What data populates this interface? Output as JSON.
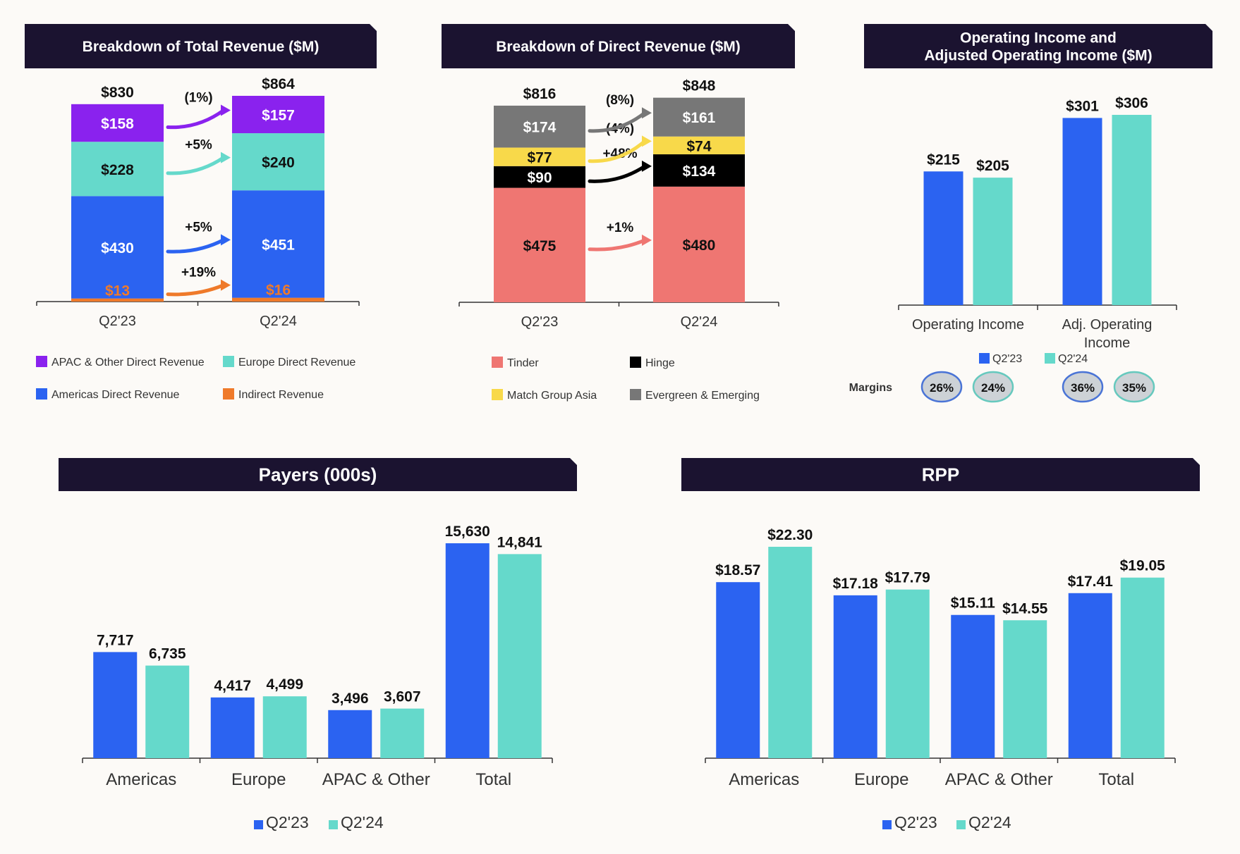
{
  "colors": {
    "header_bg": "#1b1330",
    "page_bg": "#fcfaf7",
    "blue": "#2b63f1",
    "teal": "#65d9cb",
    "purple": "#8a22ee",
    "orange": "#ef7a2a",
    "tinder": "#ef7672",
    "black": "#000000",
    "yellow": "#f8d94a",
    "gray": "#777777",
    "margin_blue_border": "#4a74d6",
    "margin_teal_border": "#66c9be",
    "margin_fill": "#cdd2d6"
  },
  "chart_data": [
    {
      "id": "total_revenue",
      "type": "bar",
      "stacked": true,
      "title": "Breakdown of Total Revenue ($M)",
      "categories": [
        "Q2'23",
        "Q2'24"
      ],
      "totals": [
        "$830",
        "$864"
      ],
      "total_values": [
        830,
        864
      ],
      "series": [
        {
          "name": "Indirect Revenue",
          "color": "#ef7a2a",
          "values": [
            13,
            16
          ],
          "labels": [
            "$13",
            "$16"
          ],
          "change": "+19%"
        },
        {
          "name": "Americas Direct Revenue",
          "color": "#2b63f1",
          "values": [
            430,
            451
          ],
          "labels": [
            "$430",
            "$451"
          ],
          "change": "+5%"
        },
        {
          "name": "Europe Direct Revenue",
          "color": "#65d9cb",
          "values": [
            228,
            240
          ],
          "labels": [
            "$228",
            "$240"
          ],
          "change": "+5%"
        },
        {
          "name": "APAC & Other Direct Revenue",
          "color": "#8a22ee",
          "values": [
            158,
            157
          ],
          "labels": [
            "$158",
            "$157"
          ],
          "change": "(1%)"
        }
      ],
      "legend_order": [
        "APAC & Other Direct Revenue",
        "Europe Direct Revenue",
        "Americas Direct Revenue",
        "Indirect Revenue"
      ],
      "legend_placement": "bottom",
      "grid": false
    },
    {
      "id": "direct_revenue",
      "type": "bar",
      "stacked": true,
      "title": "Breakdown of  Direct Revenue ($M)",
      "categories": [
        "Q2'23",
        "Q2'24"
      ],
      "totals": [
        "$816",
        "$848"
      ],
      "total_values": [
        816,
        848
      ],
      "series": [
        {
          "name": "Tinder",
          "color": "#ef7672",
          "values": [
            475,
            480
          ],
          "labels": [
            "$475",
            "$480"
          ],
          "change": "+1%"
        },
        {
          "name": "Hinge",
          "color": "#000000",
          "values": [
            90,
            134
          ],
          "labels": [
            "$90",
            "$134"
          ],
          "change": "+48%"
        },
        {
          "name": "Match Group Asia",
          "color": "#f8d94a",
          "values": [
            77,
            74
          ],
          "labels": [
            "$77",
            "$74"
          ],
          "change": "(4%)"
        },
        {
          "name": "Evergreen & Emerging",
          "color": "#777777",
          "values": [
            174,
            161
          ],
          "labels": [
            "$174",
            "$161"
          ],
          "change": "(8%)"
        }
      ],
      "legend_order": [
        "Tinder",
        "Hinge",
        "Match Group Asia",
        "Evergreen & Emerging"
      ],
      "legend_placement": "bottom",
      "grid": false
    },
    {
      "id": "operating_income",
      "type": "bar",
      "title": "Operating Income and Adjusted Operating Income ($M)",
      "title_lines": [
        "Operating Income and",
        "Adjusted Operating Income ($M)"
      ],
      "categories": [
        "Operating Income",
        "Adj. Operating Income"
      ],
      "category_lines": [
        [
          "Operating Income"
        ],
        [
          "Adj. Operating",
          "Income"
        ]
      ],
      "series": [
        {
          "name": "Q2'23",
          "color": "#2b63f1",
          "values": [
            215,
            301
          ],
          "labels": [
            "$215",
            "$301"
          ]
        },
        {
          "name": "Q2'24",
          "color": "#65d9cb",
          "values": [
            205,
            306
          ],
          "labels": [
            "$205",
            "$306"
          ]
        }
      ],
      "margins_label": "Margins",
      "margins": [
        {
          "q2_23": "26%",
          "q2_24": "24%"
        },
        {
          "q2_23": "36%",
          "q2_24": "35%"
        }
      ],
      "legend_placement": "bottom",
      "grid": false
    },
    {
      "id": "payers",
      "type": "bar",
      "title": "Payers (000s)",
      "categories": [
        "Americas",
        "Europe",
        "APAC & Other",
        "Total"
      ],
      "series": [
        {
          "name": "Q2'23",
          "color": "#2b63f1",
          "values": [
            7717,
            4417,
            3496,
            15630
          ],
          "labels": [
            "7,717",
            "4,417",
            "3,496",
            "15,630"
          ]
        },
        {
          "name": "Q2'24",
          "color": "#65d9cb",
          "values": [
            6735,
            4499,
            3607,
            14841
          ],
          "labels": [
            "6,735",
            "4,499",
            "3,607",
            "14,841"
          ]
        }
      ],
      "legend_placement": "bottom",
      "grid": false
    },
    {
      "id": "rpp",
      "type": "bar",
      "title": "RPP",
      "categories": [
        "Americas",
        "Europe",
        "APAC & Other",
        "Total"
      ],
      "series": [
        {
          "name": "Q2'23",
          "color": "#2b63f1",
          "values": [
            18.57,
            17.18,
            15.11,
            17.41
          ],
          "labels": [
            "$18.57",
            "$17.18",
            "$15.11",
            "$17.41"
          ]
        },
        {
          "name": "Q2'24",
          "color": "#65d9cb",
          "values": [
            22.3,
            17.79,
            14.55,
            19.05
          ],
          "labels": [
            "$22.30",
            "$17.79",
            "$14.55",
            "$19.05"
          ]
        }
      ],
      "legend_placement": "bottom",
      "grid": false
    }
  ]
}
